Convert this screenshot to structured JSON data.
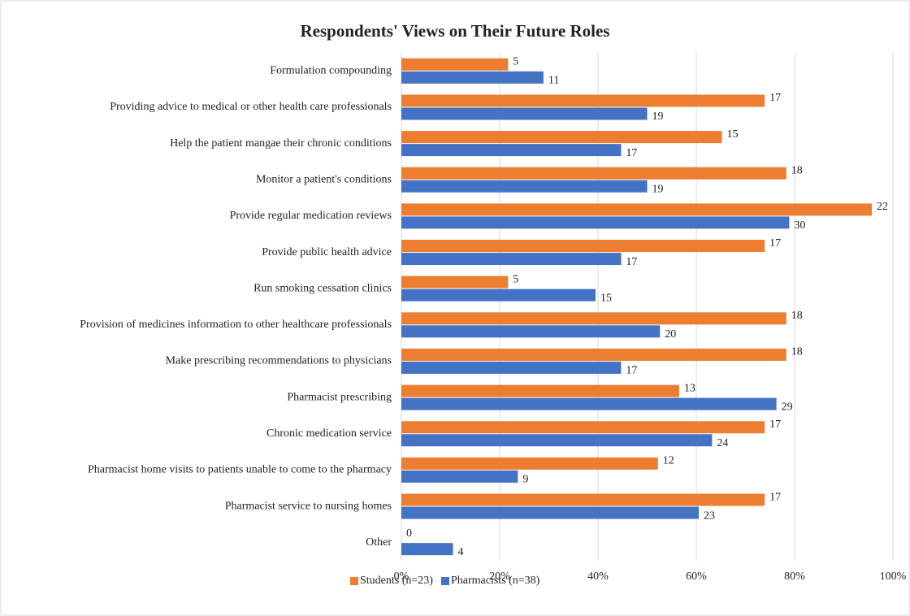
{
  "chart_data": {
    "type": "barh",
    "title": "Respondents' Views on Their Future Roles",
    "categories": [
      "Formulation compounding",
      "Providing advice to medical or other health care professionals",
      "Help the patient mangae their chronic conditions",
      "Monitor a patient's conditions",
      "Provide regular medication reviews",
      "Provide public health advice",
      "Run smoking cessation clinics",
      "Provision of medicines information to other healthcare professionals",
      "Make prescribing recommendations to physicians",
      "Pharmacist prescribing",
      "Chronic medication service",
      "Pharmacist home visits to patients unable to come to the pharmacy",
      "Pharmacist service to nursing homes",
      "Other"
    ],
    "series": [
      {
        "name": "Students (n=23)",
        "color": "#ed7d31",
        "values": [
          21.7,
          73.9,
          65.2,
          78.3,
          95.7,
          73.9,
          21.7,
          78.3,
          78.3,
          56.5,
          73.9,
          52.2,
          73.9,
          0
        ],
        "value_labels": [
          "5",
          "17",
          "15",
          "18",
          "22",
          "17",
          "5",
          "18",
          "18",
          "13",
          "17",
          "12",
          "17",
          "0"
        ]
      },
      {
        "name": "Pharmacists (n=38)",
        "color": "#4472c4",
        "values": [
          28.9,
          50.0,
          44.7,
          50.0,
          78.9,
          44.7,
          39.5,
          52.6,
          44.7,
          76.3,
          63.2,
          23.7,
          60.5,
          10.5
        ],
        "value_labels": [
          "11",
          "19",
          "17",
          "19",
          "30",
          "17",
          "15",
          "20",
          "17",
          "29",
          "24",
          "9",
          "23",
          "4"
        ]
      }
    ],
    "xlim": [
      0,
      100
    ],
    "xticks": [
      {
        "value": 0,
        "label": "0%"
      },
      {
        "value": 20,
        "label": "20%"
      },
      {
        "value": 40,
        "label": "40%"
      },
      {
        "value": 60,
        "label": "60%"
      },
      {
        "value": 80,
        "label": "80%"
      },
      {
        "value": 100,
        "label": "100%"
      }
    ],
    "grid": true,
    "legend": "bottom"
  }
}
